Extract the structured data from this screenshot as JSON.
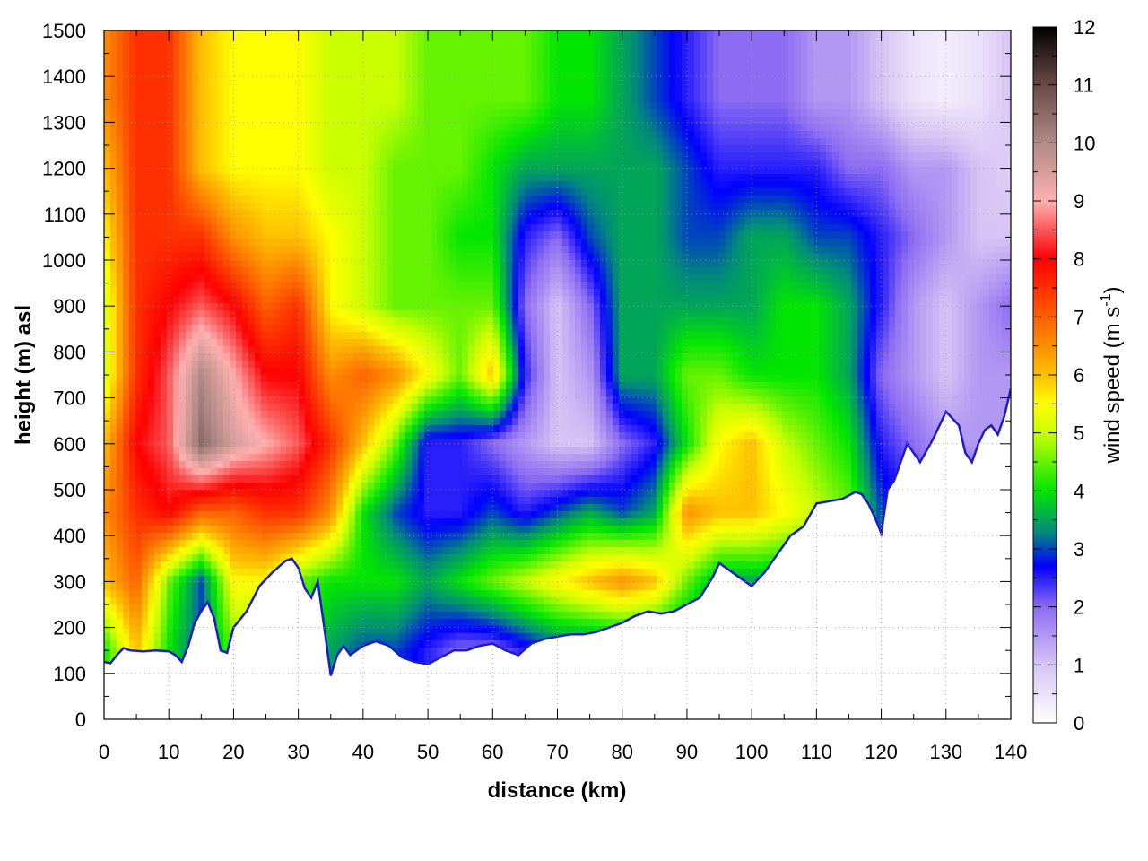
{
  "chart_data": {
    "type": "heatmap",
    "title": "",
    "xlabel": "distance (km)",
    "ylabel": "height (m) asl",
    "xlim": [
      0,
      140
    ],
    "ylim": [
      0,
      1500
    ],
    "x_ticks": [
      0,
      10,
      20,
      30,
      40,
      50,
      60,
      70,
      80,
      90,
      100,
      110,
      120,
      130,
      140
    ],
    "x_tick_labels": [
      "0",
      "10",
      "20",
      "30",
      "40",
      "50",
      "60",
      "70",
      "80",
      "90",
      "100",
      "110",
      "120",
      "130",
      "140"
    ],
    "y_ticks": [
      0,
      100,
      200,
      300,
      400,
      500,
      600,
      700,
      800,
      900,
      1000,
      1100,
      1200,
      1300,
      1400,
      1500
    ],
    "y_tick_labels": [
      "0",
      "100",
      "200",
      "300",
      "400",
      "500",
      "600",
      "700",
      "800",
      "900",
      "1000",
      "1100",
      "1200",
      "1300",
      "1400",
      "1500"
    ],
    "grid": true,
    "colorbar": {
      "label_prefix": "wind speed (m s",
      "label_exp": "-1",
      "label_suffix": ")",
      "range": [
        0,
        12
      ],
      "ticks": [
        0,
        1,
        2,
        3,
        4,
        5,
        6,
        7,
        8,
        9,
        10,
        11,
        12
      ],
      "tick_labels": [
        "0",
        "1",
        "2",
        "3",
        "4",
        "5",
        "6",
        "7",
        "8",
        "9",
        "10",
        "11",
        "12"
      ],
      "placement": "right",
      "colors": [
        [
          0,
          "#ffffff"
        ],
        [
          1,
          "#d6c4f4"
        ],
        [
          2,
          "#8c6cf2"
        ],
        [
          2.7,
          "#0000ff"
        ],
        [
          3.3,
          "#008b7a"
        ],
        [
          4,
          "#00e600"
        ],
        [
          5,
          "#ccff00"
        ],
        [
          5.5,
          "#ffff00"
        ],
        [
          6,
          "#ffbf00"
        ],
        [
          7,
          "#ff6000"
        ],
        [
          8,
          "#ff0000"
        ],
        [
          9,
          "#ffb0b0"
        ],
        [
          10,
          "#b08a86"
        ],
        [
          11,
          "#6a4a48"
        ],
        [
          12,
          "#000000"
        ]
      ]
    },
    "terrain": {
      "x": [
        0,
        1,
        2,
        3,
        4,
        6,
        8,
        10,
        11,
        12,
        13,
        14,
        15,
        16,
        17,
        18,
        19,
        20,
        22,
        24,
        26,
        28,
        29,
        30,
        31,
        32,
        33,
        34,
        35,
        36,
        37,
        38,
        40,
        42,
        44,
        46,
        48,
        50,
        52,
        54,
        56,
        58,
        60,
        62,
        64,
        66,
        68,
        70,
        72,
        74,
        76,
        78,
        80,
        82,
        84,
        86,
        88,
        90,
        92,
        94,
        95,
        96,
        98,
        100,
        102,
        104,
        106,
        108,
        110,
        112,
        114,
        116,
        117,
        118,
        119,
        120,
        121,
        122,
        124,
        126,
        128,
        130,
        132,
        133,
        134,
        135,
        136,
        137,
        138,
        139,
        140
      ],
      "y": [
        125,
        122,
        140,
        155,
        150,
        148,
        150,
        148,
        140,
        125,
        160,
        210,
        235,
        255,
        220,
        150,
        145,
        200,
        235,
        290,
        320,
        345,
        350,
        330,
        285,
        265,
        300,
        200,
        95,
        140,
        160,
        140,
        160,
        170,
        160,
        135,
        125,
        120,
        135,
        150,
        150,
        160,
        165,
        150,
        140,
        165,
        175,
        180,
        185,
        185,
        190,
        200,
        210,
        225,
        235,
        230,
        235,
        250,
        265,
        310,
        340,
        330,
        310,
        290,
        320,
        360,
        400,
        420,
        470,
        475,
        480,
        495,
        490,
        470,
        440,
        405,
        500,
        520,
        600,
        560,
        610,
        670,
        640,
        580,
        560,
        600,
        630,
        640,
        620,
        660,
        720
      ]
    },
    "field": {
      "description_nodes_x": [
        0,
        5,
        10,
        15,
        20,
        25,
        30,
        35,
        40,
        45,
        50,
        55,
        60,
        65,
        70,
        75,
        80,
        85,
        90,
        95,
        100,
        105,
        110,
        115,
        120,
        125,
        130,
        135,
        140
      ],
      "nodes_y": [
        150,
        300,
        450,
        600,
        750,
        900,
        1050,
        1200,
        1350,
        1500
      ],
      "values": [
        [
          4.0,
          6.0,
          4.0,
          3.0,
          4.5,
          4.5,
          4.0,
          3.5,
          3.0,
          3.0,
          2.5,
          2.0,
          2.0,
          2.5,
          3.0,
          3.0,
          3.0,
          3.0,
          3.0,
          3.0,
          3.0,
          3.0,
          3.0,
          3.0,
          3.0,
          3.0,
          3.0,
          3.0,
          3.0
        ],
        [
          6.0,
          7.0,
          4.5,
          3.0,
          5.5,
          5.5,
          4.5,
          4.0,
          4.0,
          4.0,
          3.5,
          4.0,
          4.5,
          5.0,
          5.5,
          6.0,
          6.5,
          6.0,
          4.5,
          3.5,
          3.5,
          3.5,
          3.5,
          3.5,
          3.5,
          3.5,
          3.5,
          3.5,
          3.5
        ],
        [
          6.5,
          7.5,
          8.0,
          7.0,
          7.0,
          7.5,
          7.5,
          6.5,
          4.0,
          3.0,
          2.5,
          2.5,
          3.0,
          2.5,
          3.0,
          3.5,
          3.0,
          3.5,
          6.5,
          6.0,
          6.0,
          5.5,
          5.0,
          4.5,
          3.0,
          2.5,
          2.5,
          2.5,
          2.0
        ],
        [
          6.0,
          8.0,
          8.5,
          10.5,
          9.5,
          9.0,
          8.5,
          7.5,
          6.0,
          4.5,
          2.5,
          2.5,
          2.0,
          1.5,
          1.0,
          1.0,
          2.0,
          2.5,
          4.0,
          5.5,
          6.0,
          5.0,
          4.5,
          4.0,
          2.5,
          2.0,
          1.5,
          1.5,
          1.5
        ],
        [
          5.0,
          7.5,
          8.5,
          10.0,
          9.0,
          8.0,
          8.0,
          6.5,
          7.0,
          6.5,
          5.5,
          4.5,
          6.0,
          2.5,
          1.0,
          1.5,
          3.5,
          3.5,
          4.5,
          4.5,
          4.0,
          4.0,
          4.0,
          3.5,
          2.0,
          1.5,
          1.0,
          1.5,
          1.5
        ],
        [
          5.0,
          7.5,
          8.0,
          8.5,
          8.0,
          7.0,
          7.5,
          5.5,
          5.0,
          4.5,
          4.5,
          4.5,
          4.5,
          2.0,
          1.0,
          2.0,
          3.5,
          3.5,
          3.5,
          3.5,
          3.5,
          4.0,
          4.0,
          3.5,
          2.5,
          1.5,
          1.0,
          1.5,
          2.0
        ],
        [
          5.5,
          7.5,
          7.5,
          7.5,
          6.5,
          6.0,
          6.0,
          5.5,
          5.0,
          4.5,
          4.5,
          4.0,
          4.0,
          2.5,
          2.0,
          3.0,
          3.5,
          3.5,
          3.0,
          3.0,
          3.5,
          3.5,
          3.0,
          3.0,
          2.5,
          2.0,
          1.5,
          1.0,
          1.0
        ],
        [
          6.0,
          7.5,
          7.5,
          6.0,
          5.5,
          5.5,
          5.5,
          5.0,
          5.0,
          4.5,
          4.5,
          4.5,
          4.0,
          3.5,
          3.5,
          3.5,
          3.5,
          3.5,
          3.0,
          2.5,
          2.5,
          2.5,
          2.5,
          2.0,
          2.0,
          1.5,
          1.5,
          1.0,
          0.8
        ],
        [
          6.5,
          7.5,
          7.5,
          6.0,
          5.5,
          5.5,
          5.5,
          5.0,
          5.0,
          5.0,
          4.5,
          4.5,
          4.5,
          4.5,
          4.0,
          4.0,
          3.5,
          3.0,
          2.5,
          2.0,
          2.0,
          2.0,
          1.5,
          1.5,
          1.0,
          0.5,
          0.3,
          0.5,
          1.0
        ],
        [
          6.5,
          7.5,
          7.5,
          6.0,
          5.5,
          5.5,
          5.5,
          5.0,
          5.0,
          5.0,
          4.5,
          4.5,
          4.5,
          4.5,
          4.0,
          4.0,
          3.5,
          3.0,
          2.5,
          2.0,
          2.0,
          2.0,
          1.5,
          1.5,
          1.0,
          0.5,
          0.3,
          0.5,
          1.0
        ]
      ]
    }
  }
}
